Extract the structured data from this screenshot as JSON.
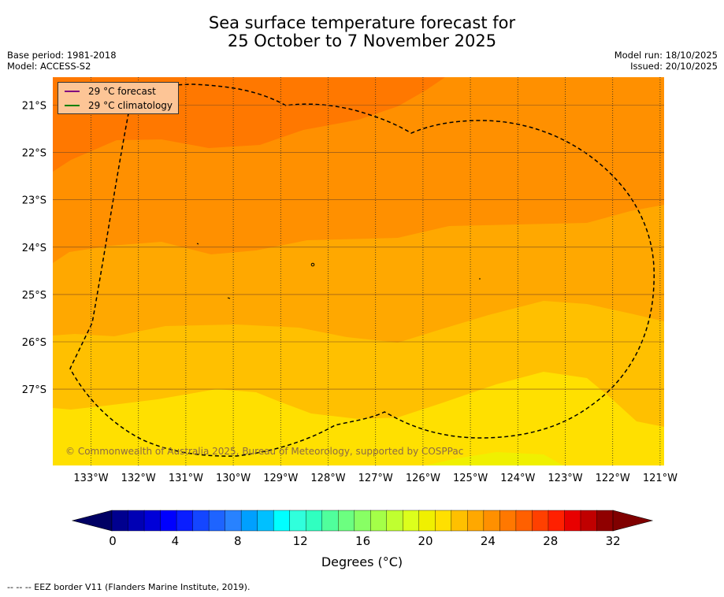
{
  "title": {
    "line1": "Sea surface temperature forecast for",
    "line2": "25 October to 7 November 2025"
  },
  "meta": {
    "base_period": "Base period: 1981-2018",
    "model": "Model: ACCESS-S2",
    "model_run": "Model run: 18/10/2025",
    "issued": "Issued: 20/10/2025"
  },
  "legend": {
    "forecast_label": "29 °C  forecast",
    "forecast_color": "#800080",
    "climatology_label": "29 °C  climatology",
    "climatology_color": "#008000"
  },
  "axes": {
    "lat_labels": [
      "21°S",
      "22°S",
      "23°S",
      "24°S",
      "25°S",
      "26°S",
      "27°S"
    ],
    "lon_labels": [
      "133°W",
      "132°W",
      "131°W",
      "130°W",
      "129°W",
      "128°W",
      "127°W",
      "126°W",
      "125°W",
      "124°W",
      "123°W",
      "122°W",
      "121°W"
    ]
  },
  "copyright": "© Commonwealth of Australia 2025, Bureau of Meteorology, supported by COSPPac",
  "colorbar": {
    "tick_labels": [
      "0",
      "4",
      "8",
      "12",
      "16",
      "20",
      "24",
      "28",
      "32"
    ],
    "colors": [
      "#00008f",
      "#0000b4",
      "#0000d8",
      "#0000fe",
      "#0a1eff",
      "#1446ff",
      "#1e64ff",
      "#2882ff",
      "#00a0ff",
      "#00c0ff",
      "#00ffff",
      "#30ffdc",
      "#30ffc0",
      "#50ff9c",
      "#6cff80",
      "#88ff64",
      "#a4ff48",
      "#c0ff30",
      "#dcff1c",
      "#f0f000",
      "#ffe000",
      "#ffc000",
      "#ffa800",
      "#ff9000",
      "#ff7800",
      "#ff6000",
      "#ff4000",
      "#ff2000",
      "#e80000",
      "#c00000",
      "#900000"
    ],
    "under_color": "#000064",
    "over_color": "#800000",
    "label": "Degrees (°C)"
  },
  "footnote": "--  --  -- EEZ border V11 (Flanders Marine Institute, 2019)."
}
